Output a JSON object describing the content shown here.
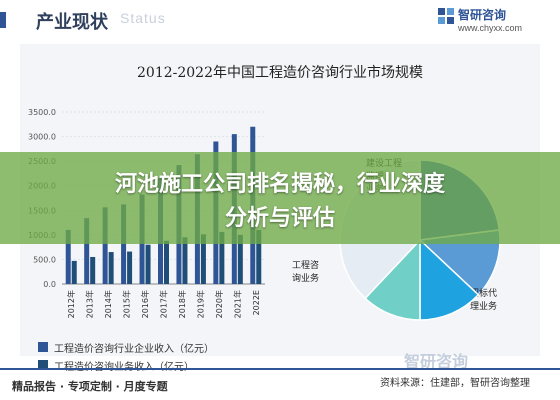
{
  "header": {
    "title": "产业现状",
    "ghost_text": "Status"
  },
  "brand": {
    "name": "智研咨询",
    "url": "www.chyxx.com"
  },
  "colors": {
    "bar_income": "#2f5597",
    "bar_business": "#1f4e79",
    "pie": [
      "#4472c4",
      "#5b9bd5",
      "#1fa3e0",
      "#70d0c8",
      "#e6ecf3"
    ],
    "overlay": "#6eaa46"
  },
  "overlay": {
    "line1": "河池施工公司排名揭秘，行业深度",
    "line2": "分析与评估"
  },
  "chart_data": [
    {
      "type": "bar",
      "title": "2012-2022年中国工程造价咨询行业市场规模",
      "categories": [
        "2012年",
        "2013年",
        "2014年",
        "2015年",
        "2016年",
        "2017年",
        "2018年",
        "2019年",
        "2020年",
        "2021年",
        "2022E"
      ],
      "ylim": [
        0,
        3500
      ],
      "yticks": [
        "0.0",
        "500.0",
        "1000.0",
        "1500.0",
        "2000.0",
        "2500.0",
        "3000.0",
        "3500.0"
      ],
      "series": [
        {
          "name": "工程造价咨询行业企业收入（亿元）",
          "values": [
            1100,
            1340,
            1560,
            1620,
            1820,
            2150,
            2420,
            2640,
            2900,
            3050,
            3200
          ]
        },
        {
          "name": "工程造价咨询业务收入（亿元）",
          "values": [
            470,
            550,
            650,
            660,
            800,
            880,
            950,
            1010,
            1060,
            1000,
            1100
          ]
        }
      ]
    },
    {
      "type": "pie",
      "slices": [
        {
          "label": "",
          "value": 23
        },
        {
          "label": "招标代理业务",
          "value": 14
        },
        {
          "label": "项目管理业务",
          "value": 13
        },
        {
          "label": "工程咨询业务",
          "value": 12
        },
        {
          "label": "",
          "value": 38
        }
      ],
      "hidden_label": "建设工程监理业务"
    }
  ],
  "footer": {
    "tags": "精品报告 · 专项定制 · 月度专题",
    "source": "资料来源：住建部，智研咨询整理",
    "watermark": "智研咨询"
  }
}
